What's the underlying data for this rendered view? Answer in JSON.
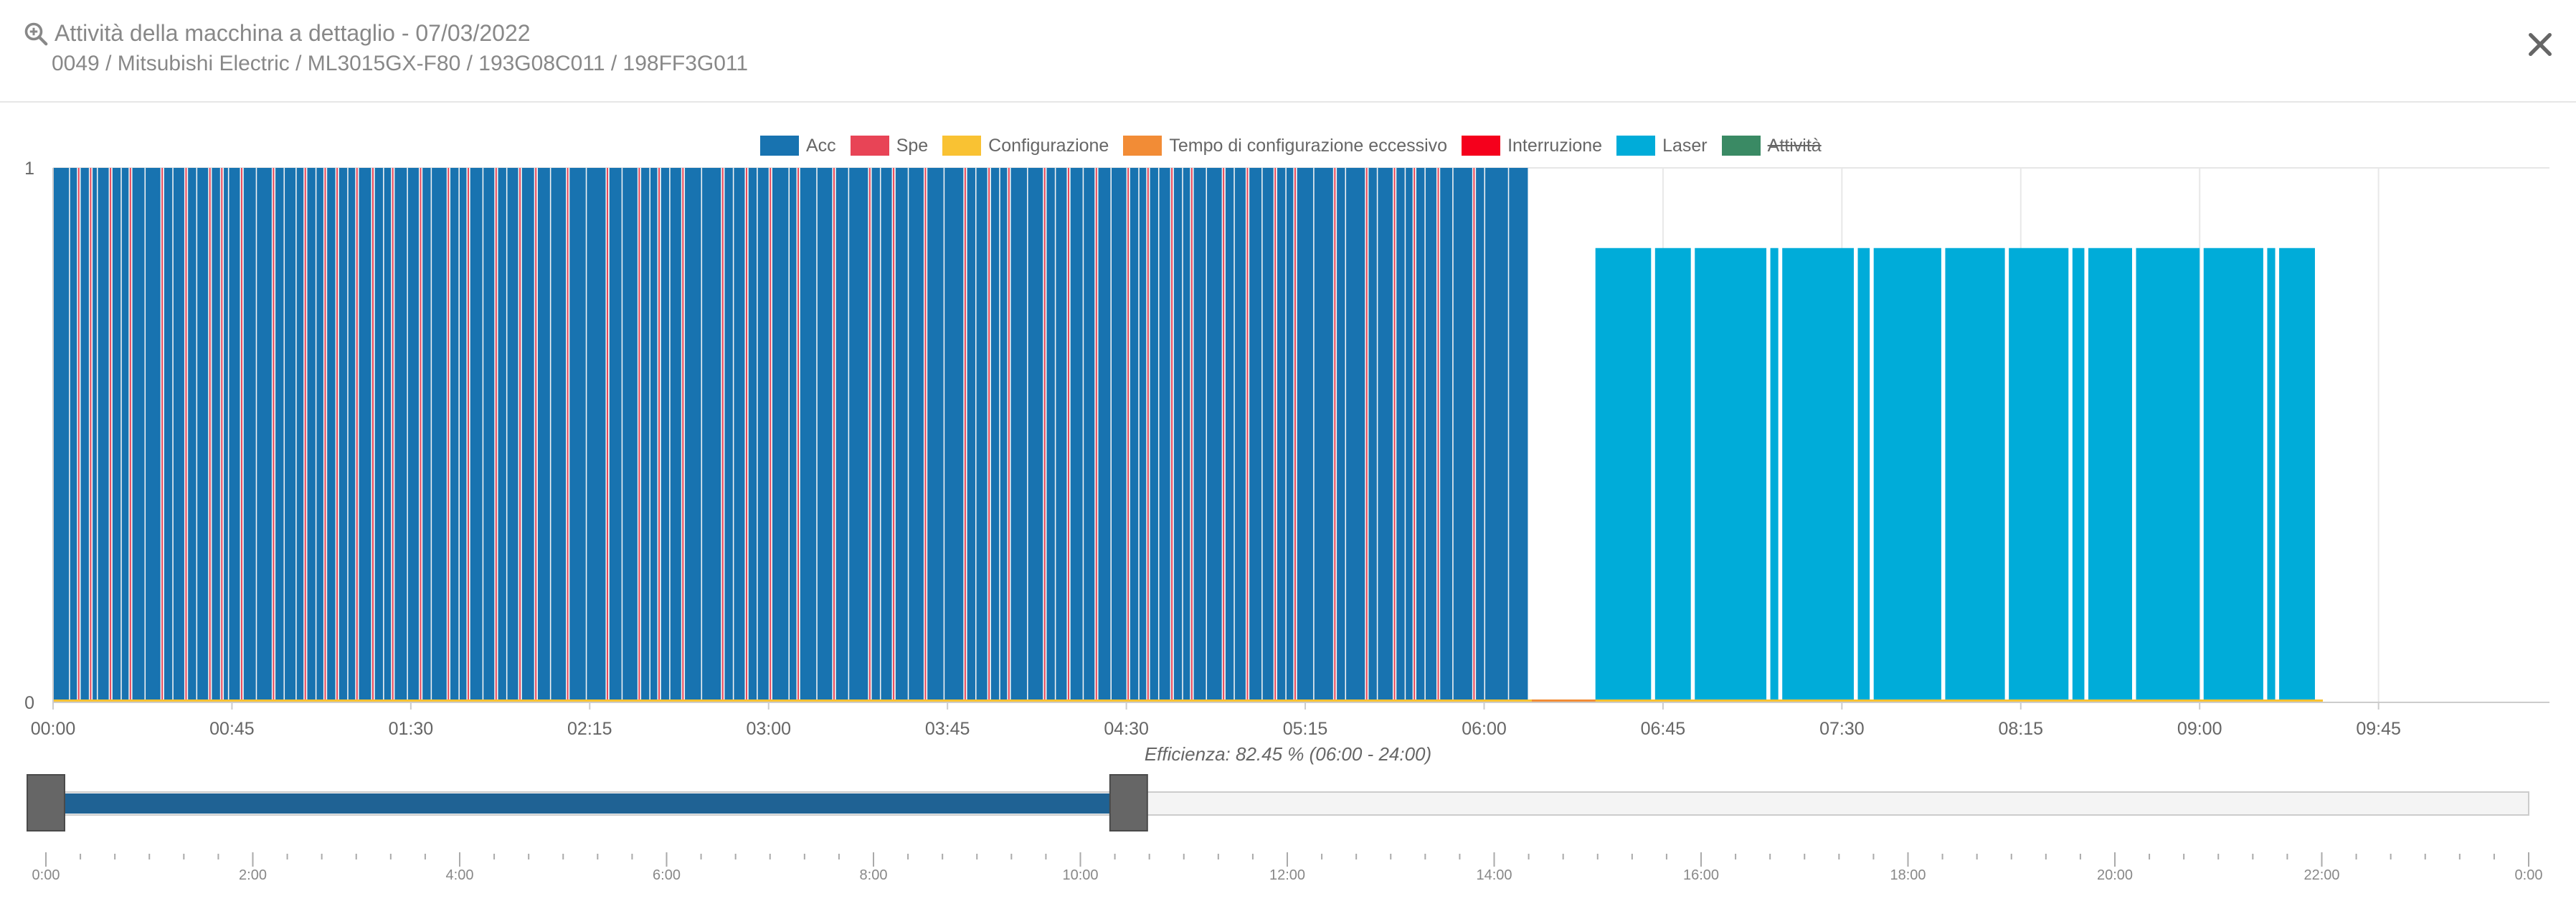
{
  "header": {
    "title": "Attività della macchina a dettaglio - 07/03/2022",
    "subtitle": "0049 / Mitsubishi Electric / ML3015GX-F80 / 193G08C011 / 198FF3G011",
    "icon": "zoom-in-icon",
    "close_icon": "close-icon"
  },
  "legend": [
    {
      "label": "Acc",
      "color": "#1873b0",
      "hidden": false
    },
    {
      "label": "Spe",
      "color": "#e84456",
      "hidden": false
    },
    {
      "label": "Configurazione",
      "color": "#f9c233",
      "hidden": false
    },
    {
      "label": "Tempo di configurazione eccessivo",
      "color": "#f28c36",
      "hidden": false
    },
    {
      "label": "Interruzione",
      "color": "#f5001c",
      "hidden": false
    },
    {
      "label": "Laser",
      "color": "#00acd9",
      "hidden": false
    },
    {
      "label": "Attività",
      "color": "#3a8a64",
      "hidden": true
    }
  ],
  "chart_data": {
    "type": "bar",
    "title": "",
    "xlabel": "",
    "ylabel": "",
    "x_unit": "minutes since 00:00",
    "xlim": [
      0,
      628
    ],
    "ylim": [
      0,
      1
    ],
    "y_ticks": [
      "0",
      "1"
    ],
    "x_ticks": [
      {
        "value": 0,
        "label": "00:00"
      },
      {
        "value": 45,
        "label": "00:45"
      },
      {
        "value": 90,
        "label": "01:30"
      },
      {
        "value": 135,
        "label": "02:15"
      },
      {
        "value": 180,
        "label": "03:00"
      },
      {
        "value": 225,
        "label": "03:45"
      },
      {
        "value": 270,
        "label": "04:30"
      },
      {
        "value": 315,
        "label": "05:15"
      },
      {
        "value": 360,
        "label": "06:00"
      },
      {
        "value": 405,
        "label": "06:45"
      },
      {
        "value": 450,
        "label": "07:30"
      },
      {
        "value": 495,
        "label": "08:15"
      },
      {
        "value": 540,
        "label": "09:00"
      },
      {
        "value": 585,
        "label": "09:45"
      }
    ],
    "acc_window": {
      "start": 0,
      "end": 371,
      "value": 1
    },
    "spe_events": [
      6,
      9,
      14,
      19,
      27,
      33,
      39,
      42,
      47,
      55,
      63,
      68,
      71,
      76,
      80,
      85,
      92,
      99,
      104,
      111,
      117,
      121,
      129,
      139,
      147,
      152,
      158,
      168,
      174,
      180,
      187,
      196,
      205,
      211,
      219,
      229,
      235,
      240,
      249,
      255,
      262,
      270,
      275,
      281,
      286,
      294,
      300,
      307,
      312,
      322,
      330,
      337,
      342,
      348,
      357
    ],
    "acc_gaps": [
      4,
      11,
      17,
      23,
      30,
      36,
      44,
      51,
      58,
      61,
      66,
      74,
      83,
      89,
      95,
      102,
      108,
      114,
      125,
      134,
      143,
      150,
      155,
      163,
      171,
      177,
      185,
      192,
      200,
      208,
      215,
      224,
      232,
      238,
      245,
      252,
      259,
      266,
      273,
      278,
      284,
      290,
      297,
      304,
      310,
      317,
      325,
      333,
      340,
      345,
      352,
      360,
      366
    ],
    "series": [
      {
        "name": "Laser",
        "value": 0.85,
        "segments": [
          [
            388,
            402
          ],
          [
            403,
            412
          ],
          [
            413,
            431
          ],
          [
            432,
            434
          ],
          [
            435,
            453
          ],
          [
            454,
            457
          ],
          [
            458,
            475
          ],
          [
            476,
            491
          ],
          [
            492,
            507
          ],
          [
            508,
            511
          ],
          [
            512,
            523
          ],
          [
            524,
            540
          ],
          [
            541,
            556
          ],
          [
            557,
            559
          ],
          [
            560,
            569
          ]
        ]
      },
      {
        "name": "Configurazione",
        "value": 0,
        "segments": [
          [
            0,
            571
          ]
        ]
      },
      {
        "name": "Tempo di configurazione eccessivo",
        "value": 0,
        "segments": [
          [
            372,
            388
          ]
        ]
      }
    ]
  },
  "efficiency": {
    "text": "Efficienza: 82.45 % (06:00 - 24:00)"
  },
  "navigator": {
    "range_minutes": [
      0,
      1440
    ],
    "selected_minutes": [
      0,
      628
    ],
    "tick_labels": [
      "0:00",
      "2:00",
      "4:00",
      "6:00",
      "8:00",
      "10:00",
      "12:00",
      "14:00",
      "16:00",
      "18:00",
      "20:00",
      "22:00",
      "0:00"
    ],
    "colors": {
      "selection": "#1f6294",
      "track": "#f4f4f4",
      "handle": "#666666"
    }
  }
}
